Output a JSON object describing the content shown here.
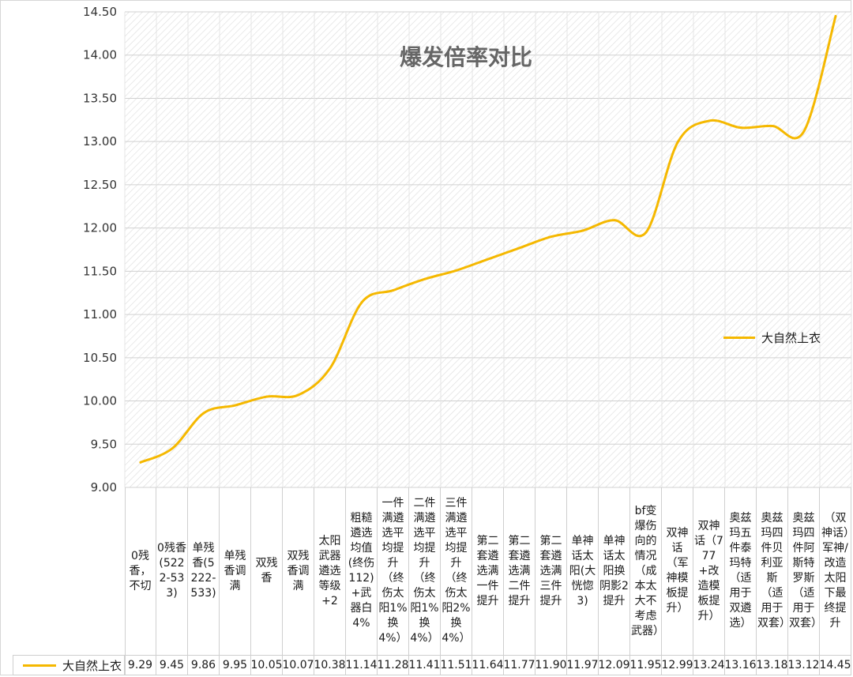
{
  "chart_data": {
    "type": "line",
    "title": "爆发倍率对比",
    "ylim": [
      9.0,
      14.5
    ],
    "yticks": [
      "9.00",
      "9.50",
      "10.00",
      "10.50",
      "11.00",
      "11.50",
      "12.00",
      "12.50",
      "13.00",
      "13.50",
      "14.00",
      "14.50"
    ],
    "grid": "horizontal",
    "legend_placement": "right",
    "categories": [
      "0残香，不切",
      "0残香(5222-533)",
      "单残香(5222-533)",
      "单残香调满",
      "双残香",
      "双残香调满",
      "太阳武器遴选等级+2",
      "粗糙遴选均值(终伤112)+武器白4%",
      "一件满遴选平均提升（终伤太阳1%换4%）",
      "二件满遴选平均提升（终伤太阳1%换4%）",
      "三件满遴选平均提升（终伤太阳2%换4%）",
      "第二套遴选满一件提升",
      "第二套遴选满二件提升",
      "第二套遴选满三件提升",
      "单神话太阳(大恍惚3)",
      "单神话太阳换阴影2提升",
      "bf变爆伤向的情况（成本太大不考虑武器）",
      "双神话（军神模板提升）",
      "双神话（777+改造模板提升）",
      "奥兹玛五件泰玛特（适用于双遴选）",
      "奥兹玛四件贝利亚斯（适用于双套）",
      "奥兹玛四件阿斯特罗斯（适用于双套）",
      "（双神话）军神/改造太阳下最终提升"
    ],
    "series": [
      {
        "name": "大自然上衣",
        "color": "#f5b800",
        "values": [
          9.29,
          9.45,
          9.86,
          9.95,
          10.05,
          10.07,
          10.38,
          11.14,
          11.28,
          11.41,
          11.51,
          11.64,
          11.77,
          11.9,
          11.97,
          12.09,
          11.95,
          12.99,
          13.24,
          13.16,
          13.18,
          13.12,
          14.45
        ],
        "labels": [
          "9.29",
          "9.45",
          "9.86",
          "9.95",
          "10.05",
          "10.07",
          "10.38",
          "11.14",
          "11.28",
          "11.41",
          "11.51",
          "11.64",
          "11.77",
          "11.90",
          "11.97",
          "12.09",
          "11.95",
          "12.99",
          "13.24",
          "13.16",
          "13.18",
          "13.12",
          "14.45"
        ]
      }
    ]
  }
}
